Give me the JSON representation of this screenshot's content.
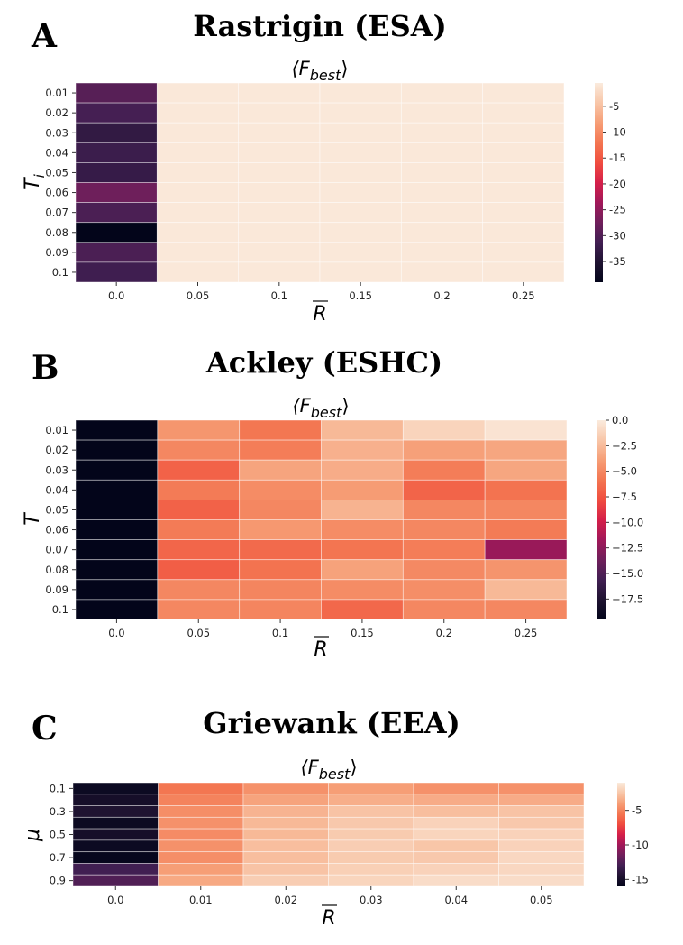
{
  "chart_data": [
    {
      "type": "heatmap",
      "panel_letter": "A",
      "title": "Rastrigin (ESA)",
      "subtitle": "⟨F_best⟩",
      "subtitle_main": "⟨F",
      "subtitle_sub": "best",
      "subtitle_close": "⟩",
      "xlabel": "R",
      "ylabel_main": "T",
      "ylabel_sub": "i",
      "x_ticks": [
        "0.0",
        "0.05",
        "0.1",
        "0.15",
        "0.2",
        "0.25"
      ],
      "y_ticks": [
        "0.01",
        "0.02",
        "0.03",
        "0.04",
        "0.05",
        "0.06",
        "0.07",
        "0.08",
        "0.09",
        "0.1"
      ],
      "colorbar_ticks": [
        "-5",
        "-10",
        "-15",
        "-20",
        "-25",
        "-30",
        "-35"
      ],
      "colorbar_values": [
        -5,
        -10,
        -15,
        -20,
        -25,
        -30,
        -35
      ],
      "vmin": -39,
      "vmax": -0.5,
      "values": [
        [
          -29.5,
          -0.8,
          -0.8,
          -0.8,
          -0.8,
          -0.8
        ],
        [
          -31.0,
          -0.8,
          -0.8,
          -0.8,
          -0.8,
          -0.8
        ],
        [
          -33.0,
          -0.8,
          -0.8,
          -0.8,
          -0.8,
          -0.8
        ],
        [
          -32.0,
          -0.8,
          -0.8,
          -0.8,
          -0.8,
          -0.8
        ],
        [
          -32.5,
          -0.8,
          -0.8,
          -0.8,
          -0.8,
          -0.8
        ],
        [
          -27.5,
          -0.8,
          -0.8,
          -0.8,
          -0.8,
          -0.8
        ],
        [
          -30.5,
          -0.8,
          -0.8,
          -0.8,
          -0.8,
          -0.8
        ],
        [
          -39.0,
          -0.8,
          -0.8,
          -0.8,
          -0.8,
          -0.8
        ],
        [
          -30.5,
          -0.8,
          -0.8,
          -0.8,
          -0.8,
          -0.8
        ],
        [
          -31.5,
          -0.8,
          -0.8,
          -0.8,
          -0.8,
          -0.8
        ]
      ]
    },
    {
      "type": "heatmap",
      "panel_letter": "B",
      "title": "Ackley (ESHC)",
      "subtitle": "⟨F_best⟩",
      "subtitle_main": "⟨F",
      "subtitle_sub": "best",
      "subtitle_close": "⟩",
      "xlabel": "R",
      "ylabel_main": "T",
      "ylabel_sub": "",
      "x_ticks": [
        "0.0",
        "0.05",
        "0.1",
        "0.15",
        "0.2",
        "0.25"
      ],
      "y_ticks": [
        "0.01",
        "0.02",
        "0.03",
        "0.04",
        "0.05",
        "0.06",
        "0.07",
        "0.08",
        "0.09",
        "0.1"
      ],
      "colorbar_ticks": [
        "0.0",
        "−2.5",
        "−5.0",
        "−7.5",
        "−10.0",
        "−12.5",
        "−15.0",
        "−17.5"
      ],
      "colorbar_values": [
        0,
        -2.5,
        -5,
        -7.5,
        -10,
        -12.5,
        -15,
        -17.5
      ],
      "vmin": -19.5,
      "vmax": 0,
      "values": [
        [
          -19.5,
          -4.3,
          -5.8,
          -2.6,
          -1.2,
          -0.4
        ],
        [
          -19.5,
          -5.0,
          -5.5,
          -3.0,
          -3.8,
          -3.5
        ],
        [
          -19.5,
          -6.8,
          -3.6,
          -3.2,
          -5.5,
          -3.5
        ],
        [
          -19.5,
          -5.6,
          -4.8,
          -4.0,
          -6.7,
          -6.0
        ],
        [
          -19.5,
          -6.8,
          -5.0,
          -2.9,
          -5.0,
          -5.0
        ],
        [
          -19.5,
          -5.6,
          -4.2,
          -4.8,
          -5.0,
          -5.6
        ],
        [
          -19.5,
          -6.6,
          -6.4,
          -5.9,
          -5.5,
          -12.0
        ],
        [
          -19.5,
          -7.0,
          -6.0,
          -3.7,
          -4.9,
          -4.4
        ],
        [
          -19.5,
          -5.0,
          -5.1,
          -4.8,
          -4.7,
          -2.6
        ],
        [
          -19.5,
          -5.0,
          -5.1,
          -6.5,
          -5.0,
          -5.0
        ]
      ]
    },
    {
      "type": "heatmap",
      "panel_letter": "C",
      "title": "Griewank (EEA)",
      "subtitle": "⟨F_best⟩",
      "subtitle_main": "⟨F",
      "subtitle_sub": "best",
      "subtitle_close": "⟩",
      "xlabel": "R",
      "ylabel_main": "μ",
      "ylabel_sub": "",
      "x_ticks": [
        "0.0",
        "0.01",
        "0.02",
        "0.03",
        "0.04",
        "0.05"
      ],
      "y_ticks": [
        "0.1",
        "0.3",
        "0.5",
        "0.7",
        "0.9"
      ],
      "y_tick_rows": [
        0,
        2,
        4,
        6,
        8
      ],
      "colorbar_ticks": [
        "-5",
        "-10",
        "-15"
      ],
      "colorbar_values": [
        -5,
        -10,
        -15
      ],
      "vmin": -16,
      "vmax": -1,
      "values": [
        [
          -15.5,
          -5.5,
          -4.5,
          -4.0,
          -4.5,
          -4.5
        ],
        [
          -15.0,
          -5.0,
          -3.8,
          -3.4,
          -3.5,
          -3.5
        ],
        [
          -14.5,
          -4.6,
          -3.2,
          -2.6,
          -2.8,
          -2.6
        ],
        [
          -15.5,
          -4.5,
          -3.0,
          -2.4,
          -2.0,
          -2.4
        ],
        [
          -15.0,
          -4.7,
          -3.0,
          -2.3,
          -1.9,
          -2.0
        ],
        [
          -15.5,
          -4.5,
          -2.8,
          -2.2,
          -2.5,
          -2.0
        ],
        [
          -15.8,
          -4.6,
          -2.8,
          -2.3,
          -2.4,
          -1.8
        ],
        [
          -13.0,
          -4.0,
          -2.6,
          -2.1,
          -2.0,
          -1.8
        ],
        [
          -12.5,
          -3.6,
          -2.2,
          -1.9,
          -1.6,
          -1.6
        ]
      ]
    }
  ]
}
